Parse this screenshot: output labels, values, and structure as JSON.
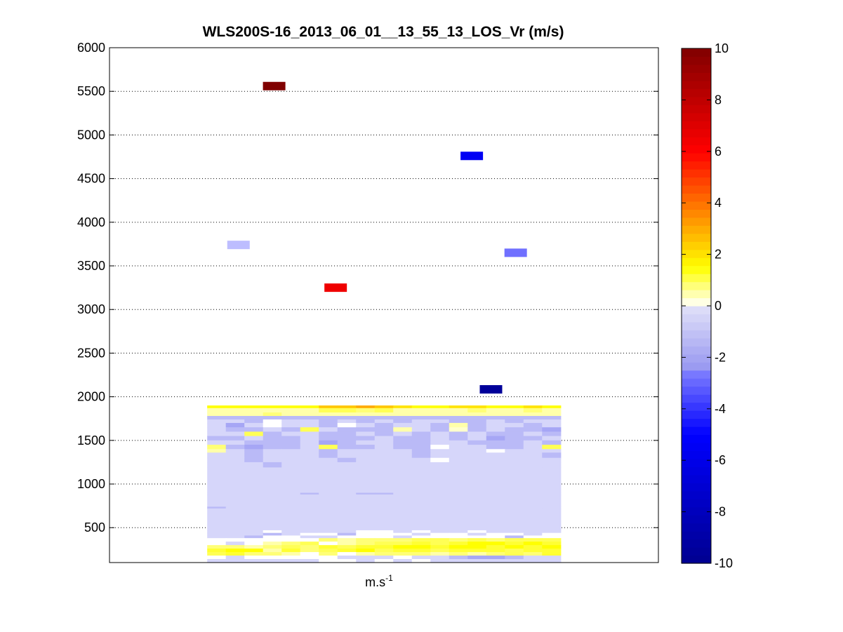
{
  "chart_data": {
    "type": "heatmap",
    "title": "WLS200S-16_2013_06_01__13_55_13_LOS_Vr (m/s)",
    "xlabel": "m.s",
    "xlabel_superscript": "-1",
    "ylabel": "",
    "ylim": [
      100,
      6000
    ],
    "yticks": [
      500,
      1000,
      1500,
      2000,
      2500,
      3000,
      3500,
      4000,
      4500,
      5000,
      5500,
      6000
    ],
    "xlim": [
      0,
      1
    ],
    "grid": "horizontal-dotted",
    "colorbar": {
      "range": [
        -10,
        10
      ],
      "ticks": [
        10,
        8,
        6,
        4,
        2,
        0,
        -2,
        -4,
        -6,
        -8,
        -10
      ],
      "colors": [
        "#00008f",
        "#0000ff",
        "#ffffff",
        "#ffff00",
        "#ff0000",
        "#800000"
      ]
    },
    "columns": 19,
    "column_range": [
      0.178,
      0.822
    ],
    "isolated_cells": [
      {
        "x": 0.3,
        "y": 5560,
        "value": 10
      },
      {
        "x": 0.66,
        "y": 4760,
        "value": -5.5
      },
      {
        "x": 0.235,
        "y": 3740,
        "value": -1.3
      },
      {
        "x": 0.74,
        "y": 3650,
        "value": -2.8
      },
      {
        "x": 0.412,
        "y": 3250,
        "value": 6.5
      },
      {
        "x": 0.695,
        "y": 2085,
        "value": -9.5
      }
    ],
    "dense_region": {
      "y_range": [
        100,
        1900
      ],
      "rows": [
        {
          "y_from": 1870,
          "y_to": 1900,
          "values": [
            1.5,
            1.5,
            1.5,
            1.5,
            1.5,
            1.5,
            2.5,
            2.5,
            3.0,
            2.5,
            2.0,
            1.5,
            1.5,
            2.0,
            2.0,
            1.5,
            1.5,
            2.0,
            1.5
          ]
        },
        {
          "y_from": 1820,
          "y_to": 1870,
          "values": [
            0.5,
            0.5,
            0.5,
            0.5,
            0.5,
            0.5,
            1.0,
            1.0,
            0.8,
            1.0,
            0.5,
            0.5,
            0.5,
            0.5,
            0.8,
            0.5,
            0.5,
            0.8,
            0.5
          ]
        },
        {
          "y_from": 1780,
          "y_to": 1820,
          "values": [
            0.5,
            0.5,
            0.5,
            0.8,
            0.5,
            0.5,
            0.5,
            0.5,
            0.5,
            0.5,
            0.5,
            0.5,
            0.5,
            0.5,
            0.5,
            0.5,
            0.5,
            0.5,
            0.5
          ]
        },
        {
          "y_from": 1740,
          "y_to": 1780,
          "values": [
            -0.8,
            -0.8,
            -0.8,
            -0.8,
            -0.8,
            -0.8,
            -1.0,
            -1.0,
            -0.8,
            -0.8,
            -0.8,
            -1.0,
            -0.8,
            -0.8,
            -0.8,
            -1.0,
            -0.8,
            -0.8,
            -0.8
          ]
        },
        {
          "y_from": 1700,
          "y_to": 1740,
          "values": [
            -0.4,
            -0.5,
            -0.6,
            0,
            -0.5,
            -0.4,
            -0.6,
            -0.5,
            -0.6,
            -0.5,
            -0.6,
            -0.5,
            -0.4,
            -0.8,
            -0.6,
            -0.5,
            -0.6,
            -0.4,
            -0.5
          ]
        },
        {
          "y_from": 1650,
          "y_to": 1700,
          "values": [
            -0.5,
            -1.2,
            -0.5,
            0,
            -0.4,
            -0.5,
            -0.6,
            0,
            -0.5,
            -0.6,
            -0.4,
            -0.5,
            -0.6,
            0.5,
            -0.6,
            -0.5,
            -0.4,
            -0.6,
            -0.5
          ]
        },
        {
          "y_from": 1600,
          "y_to": 1650,
          "values": [
            -0.4,
            -0.6,
            -0.8,
            -0.5,
            -0.6,
            1.0,
            -0.4,
            -1.0,
            -0.8,
            -0.6,
            0.5,
            -0.5,
            -0.6,
            0.3,
            -0.8,
            -0.5,
            -1.0,
            -0.6,
            -1.2
          ]
        },
        {
          "y_from": 1550,
          "y_to": 1600,
          "values": [
            -0.5,
            -0.5,
            1.0,
            -0.6,
            -0.5,
            -0.4,
            -0.6,
            -0.8,
            -0.5,
            -0.6,
            -0.4,
            -0.6,
            -0.4,
            -0.6,
            -0.5,
            -0.8,
            -0.6,
            -0.4,
            -0.8
          ]
        },
        {
          "y_from": 1500,
          "y_to": 1550,
          "values": [
            -0.6,
            -0.8,
            -0.5,
            -1.0,
            -0.6,
            -0.4,
            -0.8,
            -1.0,
            -0.6,
            -0.4,
            -0.8,
            -0.6,
            -0.5,
            -0.8,
            -0.4,
            -1.2,
            -0.6,
            -0.8,
            -0.5
          ]
        },
        {
          "y_from": 1450,
          "y_to": 1500,
          "values": [
            -0.5,
            -0.4,
            -0.6,
            -0.8,
            -1.0,
            -0.4,
            -1.2,
            -0.6,
            -0.4,
            -0.5,
            -0.8,
            -0.6,
            -0.5,
            -0.4,
            -0.8,
            -0.6,
            -1.0,
            -0.5,
            -0.6
          ]
        },
        {
          "y_from": 1400,
          "y_to": 1450,
          "values": [
            0.8,
            -0.8,
            -1.2,
            -1.0,
            -0.6,
            -0.4,
            1.0,
            -1.0,
            -0.6,
            -0.5,
            -0.8,
            -0.6,
            0,
            -0.5,
            -0.4,
            -0.6,
            -0.8,
            -0.5,
            1.0
          ]
        },
        {
          "y_from": 1360,
          "y_to": 1400,
          "values": [
            0.5,
            -0.4,
            -0.6,
            -0.4,
            -0.5,
            -0.4,
            -0.6,
            -0.4,
            -0.5,
            -0.4,
            -0.5,
            -0.6,
            -0.4,
            -0.4,
            -0.5,
            0,
            -0.4,
            -0.5,
            -0.4
          ]
        },
        {
          "y_from": 1300,
          "y_to": 1360,
          "values": [
            -0.4,
            -0.4,
            -0.6,
            -0.4,
            -0.4,
            -0.4,
            -1.0,
            -0.4,
            -0.4,
            -0.4,
            -0.4,
            -0.6,
            -0.4,
            -0.4,
            -0.4,
            -0.4,
            -0.4,
            -0.4,
            -0.6
          ]
        },
        {
          "y_from": 1250,
          "y_to": 1300,
          "values": [
            -0.4,
            -0.4,
            -1.0,
            -0.4,
            -0.4,
            -0.4,
            -0.4,
            -0.8,
            -0.4,
            -0.4,
            -0.4,
            -0.4,
            0,
            -0.4,
            -0.4,
            -0.4,
            -0.4,
            -0.4,
            -0.4
          ]
        },
        {
          "y_from": 1190,
          "y_to": 1250,
          "values": [
            -0.4,
            -0.4,
            -0.4,
            -0.8,
            -0.4,
            -0.4,
            -0.4,
            -0.4,
            -0.4,
            -0.4,
            -0.4,
            -0.4,
            -0.4,
            -0.4,
            -0.4,
            -0.4,
            -0.4,
            -0.4,
            -0.4
          ]
        },
        {
          "y_from": 900,
          "y_to": 1190,
          "values": [
            -0.4,
            -0.4,
            -0.4,
            -0.4,
            -0.4,
            -0.4,
            -0.4,
            -0.4,
            -0.4,
            -0.4,
            -0.4,
            -0.4,
            -0.4,
            -0.4,
            -0.4,
            -0.4,
            -0.4,
            -0.4,
            -0.4
          ]
        },
        {
          "y_from": 880,
          "y_to": 900,
          "values": [
            -0.4,
            -0.4,
            -0.4,
            -0.4,
            -0.4,
            -0.8,
            -0.4,
            -0.4,
            -0.8,
            -0.8,
            -0.4,
            -0.4,
            -0.4,
            -0.4,
            -0.4,
            -0.4,
            -0.4,
            -0.4,
            -0.4
          ]
        },
        {
          "y_from": 740,
          "y_to": 880,
          "values": [
            -0.4,
            -0.4,
            -0.4,
            -0.4,
            -0.4,
            -0.4,
            -0.4,
            -0.4,
            -0.4,
            -0.4,
            -0.4,
            -0.4,
            -0.4,
            -0.4,
            -0.4,
            -0.4,
            -0.4,
            -0.4,
            -0.4
          ]
        },
        {
          "y_from": 720,
          "y_to": 740,
          "values": [
            -0.8,
            -0.4,
            -0.4,
            -0.4,
            -0.4,
            -0.4,
            -0.4,
            -0.4,
            -0.4,
            -0.4,
            -0.4,
            -0.4,
            -0.4,
            -0.4,
            -0.4,
            -0.4,
            -0.4,
            -0.4,
            -0.4
          ]
        },
        {
          "y_from": 470,
          "y_to": 720,
          "values": [
            -0.4,
            -0.4,
            -0.4,
            -0.4,
            -0.4,
            -0.4,
            -0.4,
            -0.4,
            -0.4,
            -0.4,
            -0.4,
            -0.4,
            -0.4,
            -0.4,
            -0.4,
            -0.4,
            -0.4,
            -0.4,
            -0.4
          ]
        },
        {
          "y_from": 440,
          "y_to": 470,
          "values": [
            -0.4,
            -0.4,
            -0.4,
            0,
            -0.4,
            -0.4,
            -0.4,
            -0.4,
            0,
            0,
            -0.4,
            0,
            -0.4,
            -0.4,
            0,
            -0.4,
            -0.4,
            -0.4,
            -0.4
          ]
        },
        {
          "y_from": 410,
          "y_to": 440,
          "values": [
            -0.4,
            -0.4,
            -0.4,
            -0.6,
            -0.4,
            0,
            0,
            -0.6,
            0,
            0,
            0,
            -0.4,
            0,
            0,
            -0.4,
            0,
            0,
            -0.4,
            0
          ]
        },
        {
          "y_from": 380,
          "y_to": 410,
          "values": [
            -0.4,
            -0.4,
            -0.6,
            0,
            0,
            -0.4,
            -0.4,
            0,
            0,
            0,
            -0.4,
            0,
            0,
            0,
            0,
            0,
            -0.6,
            0,
            0
          ]
        },
        {
          "y_from": 340,
          "y_to": 380,
          "values": [
            0,
            0,
            0,
            0,
            0,
            0,
            0.8,
            0.5,
            0.8,
            0.8,
            0.8,
            1.0,
            1.0,
            0.8,
            1.0,
            0.8,
            1.0,
            1.0,
            1.0
          ]
        },
        {
          "y_from": 300,
          "y_to": 340,
          "values": [
            0,
            -0.4,
            0,
            0.5,
            0.8,
            1.0,
            0,
            0.5,
            0.8,
            1.0,
            1.0,
            1.2,
            1.0,
            1.2,
            1.5,
            1.5,
            1.2,
            1.5,
            1.2
          ]
        },
        {
          "y_from": 260,
          "y_to": 300,
          "values": [
            0.8,
            0.8,
            0.5,
            0.8,
            1.0,
            0.8,
            1.2,
            1.0,
            1.2,
            1.2,
            1.5,
            1.5,
            1.2,
            1.5,
            1.5,
            1.2,
            1.5,
            1.2,
            1.5
          ]
        },
        {
          "y_from": 220,
          "y_to": 260,
          "values": [
            1.2,
            1.5,
            1.5,
            0.5,
            1.2,
            0.8,
            1.0,
            1.2,
            1.5,
            1.0,
            1.2,
            1.2,
            1.0,
            1.2,
            1.2,
            1.2,
            1.0,
            1.2,
            1.2
          ]
        },
        {
          "y_from": 180,
          "y_to": 220,
          "values": [
            1.0,
            1.2,
            0.8,
            0.8,
            0.5,
            0,
            0.8,
            0,
            0.5,
            0.8,
            0.8,
            0.8,
            0.5,
            0.8,
            0.5,
            0.8,
            1.0,
            0.8,
            1.2
          ]
        },
        {
          "y_from": 140,
          "y_to": 180,
          "values": [
            0,
            -0.4,
            0,
            0,
            0,
            0,
            0,
            -0.5,
            -0.4,
            -0.4,
            0,
            -0.4,
            -0.4,
            -1.0,
            -1.2,
            -1.5,
            -1.0,
            -0.4,
            -0.5
          ]
        },
        {
          "y_from": 100,
          "y_to": 140,
          "values": [
            -0.4,
            -0.4,
            -0.4,
            -0.4,
            -0.4,
            -0.4,
            0,
            0,
            -0.4,
            0,
            -0.4,
            0,
            -0.4,
            -0.4,
            -0.4,
            -0.4,
            -0.4,
            -0.4,
            -0.4
          ]
        }
      ]
    }
  }
}
